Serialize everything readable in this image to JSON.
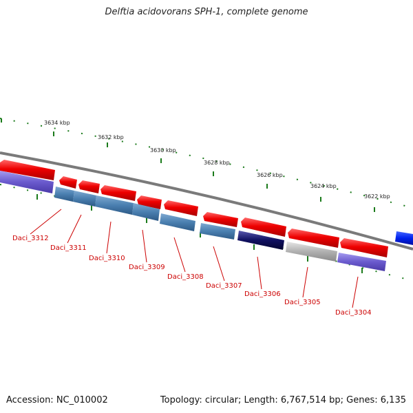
{
  "title": "Delftia acidovorans SPH-1, complete genome",
  "footer": {
    "accession": "Accession: NC_010002",
    "topology": "Topology: circular; Length: 6,767,514 bp; Genes: 6,135"
  },
  "scale_labels": [
    "3634 kbp",
    "3632 kbp",
    "3630 kbp",
    "3628 kbp",
    "3626 kbp",
    "3624 kbp",
    "3622 kbp"
  ],
  "gene_labels": [
    "Daci_3312",
    "Daci_3311",
    "Daci_3310",
    "Daci_3309",
    "Daci_3308",
    "Daci_3307",
    "Daci_3306",
    "Daci_3305",
    "Daci_3304"
  ],
  "colors": {
    "forward_gene": "#ee0000",
    "reverse_steelblue": "#4a7fb0",
    "reverse_purple": "#6a5acd",
    "reverse_navy": "#101060",
    "reverse_gray": "#aaaaaa",
    "highlight_blue": "#0022ee",
    "backbone": "#808080",
    "tick": "#1a7a1a",
    "label": "#cc0000"
  }
}
